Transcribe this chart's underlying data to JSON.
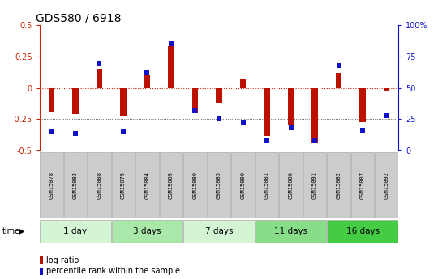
{
  "title": "GDS580 / 6918",
  "samples": [
    "GSM15078",
    "GSM15083",
    "GSM15088",
    "GSM15079",
    "GSM15084",
    "GSM15089",
    "GSM15080",
    "GSM15085",
    "GSM15090",
    "GSM15081",
    "GSM15086",
    "GSM15091",
    "GSM15082",
    "GSM15087",
    "GSM15092"
  ],
  "log_ratio": [
    -0.19,
    -0.21,
    0.15,
    -0.22,
    0.1,
    0.33,
    -0.2,
    -0.12,
    0.07,
    -0.38,
    -0.3,
    -0.44,
    0.12,
    -0.27,
    -0.02
  ],
  "percentile": [
    15,
    14,
    70,
    15,
    62,
    85,
    32,
    25,
    22,
    8,
    18,
    8,
    68,
    16,
    28
  ],
  "groups": [
    {
      "label": "1 day",
      "indices": [
        0,
        1,
        2
      ],
      "color": "#d4f5d4"
    },
    {
      "label": "3 days",
      "indices": [
        3,
        4,
        5
      ],
      "color": "#aae8aa"
    },
    {
      "label": "7 days",
      "indices": [
        6,
        7,
        8
      ],
      "color": "#d4f5d4"
    },
    {
      "label": "11 days",
      "indices": [
        9,
        10,
        11
      ],
      "color": "#88dd88"
    },
    {
      "label": "16 days",
      "indices": [
        12,
        13,
        14
      ],
      "color": "#44cc44"
    }
  ],
  "ylim": [
    -0.5,
    0.5
  ],
  "yticks_left": [
    -0.5,
    -0.25,
    0.0,
    0.25,
    0.5
  ],
  "yticks_right": [
    0,
    25,
    50,
    75,
    100
  ],
  "bar_color": "#bb1100",
  "dot_color": "#1111cc",
  "zero_line_color": "#cc2200",
  "grid_color": "#333333",
  "bg_color": "#ffffff",
  "sample_box_color": "#cccccc",
  "left_axis_color": "#cc2200",
  "right_axis_color": "#1111cc"
}
